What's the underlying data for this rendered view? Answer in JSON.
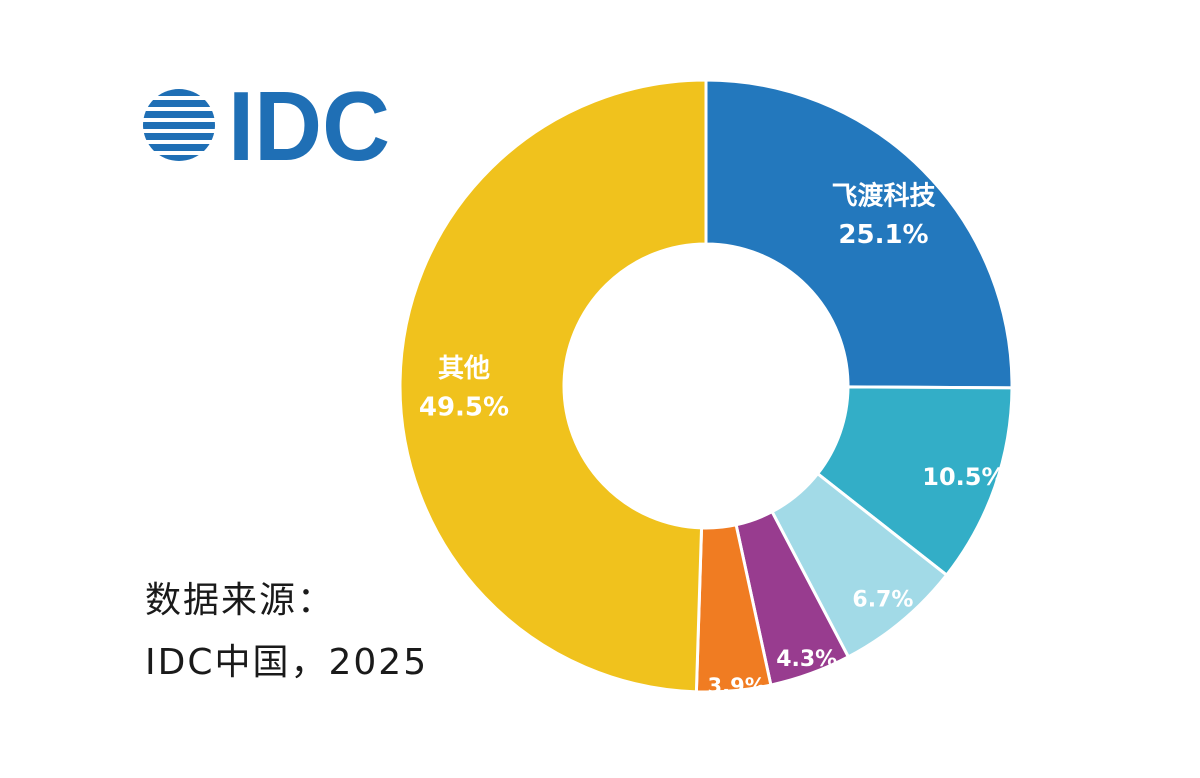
{
  "logo": {
    "text": "IDC",
    "color": "#1f6fb5"
  },
  "source": {
    "line1": "数据来源：",
    "line2": "IDC中国，2025"
  },
  "chart_data": {
    "type": "pie",
    "donut": true,
    "title": "",
    "legend": "none",
    "slices": [
      {
        "name": "飞渡科技",
        "value": 25.1,
        "label": "25.1%",
        "color": "#2378bd"
      },
      {
        "name": "",
        "value": 10.5,
        "label": "10.5%",
        "color": "#33aec7"
      },
      {
        "name": "",
        "value": 6.7,
        "label": "6.7%",
        "color": "#a2dae7"
      },
      {
        "name": "",
        "value": 4.3,
        "label": "4.3%",
        "color": "#983c8f"
      },
      {
        "name": "",
        "value": 3.9,
        "label": "3.9%",
        "color": "#f07c22"
      },
      {
        "name": "其他",
        "value": 49.5,
        "label": "49.5%",
        "color": "#f0c21d"
      }
    ]
  }
}
